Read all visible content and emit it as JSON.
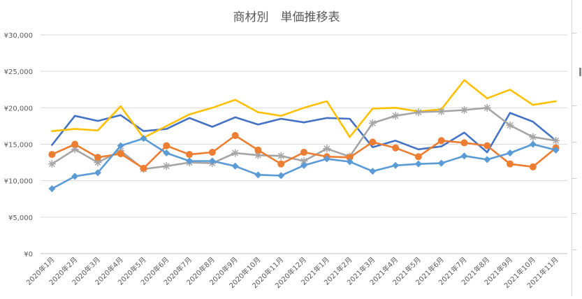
{
  "chart_data": {
    "type": "line",
    "title": "商材別　単価推移表",
    "categories": [
      "2020年1月",
      "2020年2月",
      "2020年3月",
      "2020年4月",
      "2020年5月",
      "2020年6月",
      "2020年7月",
      "2020年8月",
      "2020年9月",
      "2020年10月",
      "2020年11月",
      "2020年12月",
      "2021年1月",
      "2021年2月",
      "2021年3月",
      "2021年4月",
      "2021年5月",
      "2021年6月",
      "2021年7月",
      "2021年8月",
      "2021年9月",
      "2021年10月",
      "2021年11月"
    ],
    "y_tick_labels": [
      "¥0",
      "¥5,000",
      "¥10,000",
      "¥15,000",
      "¥20,000",
      "¥25,000",
      "¥30,000"
    ],
    "ylim": [
      0,
      30000
    ],
    "grid": true,
    "legend": "none",
    "series": [
      {
        "color": "#4472c4",
        "marker": "none",
        "values": [
          14900,
          18900,
          18200,
          19000,
          16800,
          17100,
          18600,
          17400,
          18700,
          17700,
          18500,
          18000,
          18600,
          18500,
          14600,
          15500,
          14300,
          14700,
          16600,
          13900,
          19300,
          18100,
          15500
        ]
      },
      {
        "color": "#ffc000",
        "marker": "none",
        "values": [
          16800,
          17100,
          16900,
          20200,
          15900,
          17500,
          19100,
          20000,
          21100,
          19400,
          18900,
          20000,
          20900,
          16000,
          19900,
          20000,
          19500,
          19800,
          23800,
          21300,
          22500,
          20400,
          20900
        ]
      },
      {
        "color": "#a5a5a5",
        "marker": "star",
        "values": [
          12300,
          14300,
          12500,
          14100,
          11600,
          12000,
          12500,
          12400,
          13800,
          13500,
          13400,
          12700,
          14400,
          13300,
          17900,
          18900,
          19400,
          19500,
          19700,
          20000,
          17600,
          16000,
          15500
        ]
      },
      {
        "color": "#ed7d31",
        "marker": "circle",
        "values": [
          13600,
          15000,
          13200,
          13700,
          11700,
          14800,
          13600,
          13900,
          16200,
          14200,
          12300,
          13900,
          13300,
          13200,
          15300,
          14500,
          13300,
          15500,
          15200,
          14800,
          12300,
          11900,
          14500
        ]
      },
      {
        "color": "#5b9bd5",
        "marker": "diamond",
        "values": [
          8900,
          10600,
          11100,
          14800,
          15800,
          13800,
          12700,
          12700,
          12000,
          10800,
          10700,
          12100,
          13000,
          12600,
          11300,
          12100,
          12300,
          12400,
          13400,
          12900,
          13800,
          15000,
          14200
        ]
      }
    ]
  }
}
